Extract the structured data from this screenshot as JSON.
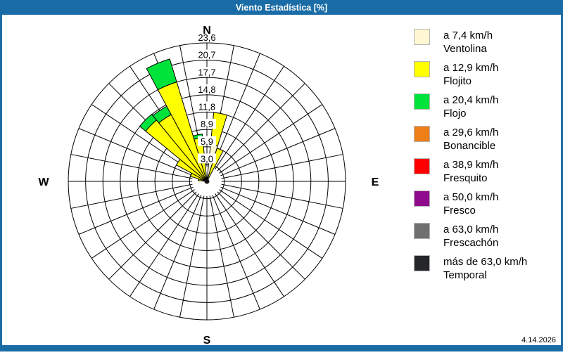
{
  "window": {
    "title": "Viento Estadística [%]",
    "titlebar_color": "#1a6ca6",
    "date": "4.14.2026"
  },
  "chart_data": {
    "type": "windrose-stacked-polar-bar",
    "units": "%",
    "sector_count": 32,
    "sector_width_deg": 11.25,
    "rmax": 23.6,
    "ring_values": [
      2.95,
      5.9,
      8.85,
      11.8,
      14.75,
      17.7,
      20.65,
      23.6
    ],
    "ring_labels": [
      "3,0",
      "5,9",
      "8,9",
      "11,8",
      "14,8",
      "17,7",
      "20,7",
      "23,6"
    ],
    "compass": {
      "north": "N",
      "east": "E",
      "south": "S",
      "west": "W"
    },
    "grid_color": "#000000",
    "series": [
      {
        "name": "Ventolina",
        "speed_label": "a 7,4 km/h",
        "color": "#fff6d3"
      },
      {
        "name": "Flojito",
        "speed_label": "a 12,9 km/h",
        "color": "#ffff00"
      },
      {
        "name": "Flojo",
        "speed_label": "a 20,4 km/h",
        "color": "#00e33a"
      },
      {
        "name": "Bonancible",
        "speed_label": "a 29,6 km/h",
        "color": "#ee7f17"
      },
      {
        "name": "Fresquito",
        "speed_label": "a 38,9 km/h",
        "color": "#ff0000"
      },
      {
        "name": "Fresco",
        "speed_label": "a 50,0 km/h",
        "color": "#8f0a8c"
      },
      {
        "name": "Frescachón",
        "speed_label": "a 63,0 km/h",
        "color": "#6f6f6f"
      },
      {
        "name": "Temporal",
        "speed_label": "más de 63,0 km/h",
        "color": "#242629"
      }
    ],
    "bars": [
      {
        "angle_deg": 281.25,
        "segments": [
          0,
          1.5,
          0
        ]
      },
      {
        "angle_deg": 292.5,
        "segments": [
          0,
          2.9,
          0
        ]
      },
      {
        "angle_deg": 303.75,
        "segments": [
          0,
          5.9,
          0
        ]
      },
      {
        "angle_deg": 315.0,
        "segments": [
          0,
          13.5,
          1.3
        ]
      },
      {
        "angle_deg": 326.25,
        "segments": [
          0,
          12.9,
          1.6
        ]
      },
      {
        "angle_deg": 337.5,
        "segments": [
          0,
          17.7,
          4.1
        ]
      },
      {
        "angle_deg": 348.75,
        "segments": [
          0,
          7.5,
          0.6
        ]
      },
      {
        "angle_deg": 11.25,
        "segments": [
          6.3,
          5.5,
          0
        ]
      },
      {
        "angle_deg": 22.5,
        "segments": [
          0,
          5.9,
          0
        ]
      }
    ]
  },
  "legend": {
    "items": [
      {
        "line1": "a 7,4 km/h",
        "line2": "Ventolina",
        "color": "#fff6d3"
      },
      {
        "line1": "a 12,9 km/h",
        "line2": "Flojito",
        "color": "#ffff00"
      },
      {
        "line1": "a 20,4 km/h",
        "line2": "Flojo",
        "color": "#00e33a"
      },
      {
        "line1": "a 29,6 km/h",
        "line2": "Bonancible",
        "color": "#ee7f17"
      },
      {
        "line1": "a 38,9 km/h",
        "line2": "Fresquito",
        "color": "#ff0000"
      },
      {
        "line1": "a 50,0 km/h",
        "line2": "Fresco",
        "color": "#8f0a8c"
      },
      {
        "line1": "a 63,0 km/h",
        "line2": "Frescachón",
        "color": "#6f6f6f"
      },
      {
        "line1": "más de 63,0 km/h",
        "line2": "Temporal",
        "color": "#242629"
      }
    ]
  }
}
